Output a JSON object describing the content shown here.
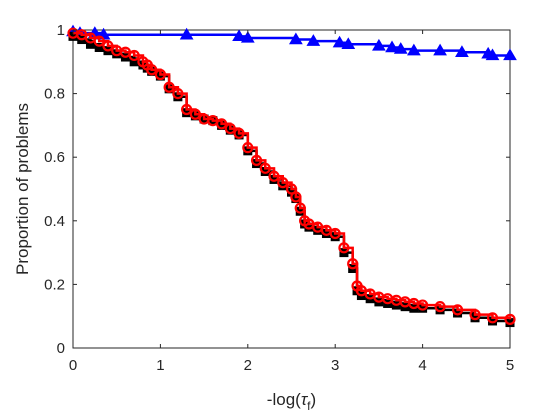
{
  "chart_data": {
    "type": "line",
    "title": "",
    "xlabel": "-log(τ_f)",
    "xlabel_main": "-log(",
    "xlabel_symbol": "τ",
    "xlabel_sub": "f",
    "xlabel_close": ")",
    "ylabel": "Proportion of problems",
    "xlim": [
      0,
      5
    ],
    "ylim": [
      0,
      1
    ],
    "xticks": [
      0,
      1,
      2,
      3,
      4,
      5
    ],
    "yticks": [
      0,
      0.2,
      0.4,
      0.6,
      0.8,
      1
    ],
    "xtick_labels": [
      "0",
      "1",
      "2",
      "3",
      "4",
      "5"
    ],
    "ytick_labels": [
      "0",
      "0.2",
      "0.4",
      "0.6",
      "0.8",
      "1"
    ],
    "grid": false,
    "series": [
      {
        "color": "#0000ff",
        "marker": "triangle-up",
        "x": [
          0,
          0.08,
          0.25,
          0.35,
          1.3,
          1.9,
          2.0,
          2.55,
          2.75,
          3.05,
          3.15,
          3.5,
          3.65,
          3.75,
          3.9,
          4.2,
          4.45,
          4.75,
          4.8,
          5.0
        ],
        "y": [
          0.995,
          0.99,
          0.99,
          0.985,
          0.985,
          0.98,
          0.975,
          0.97,
          0.965,
          0.96,
          0.955,
          0.95,
          0.945,
          0.94,
          0.935,
          0.935,
          0.93,
          0.925,
          0.92,
          0.92
        ]
      },
      {
        "color": "#000000",
        "marker": "square",
        "x": [
          0,
          0.1,
          0.2,
          0.3,
          0.4,
          0.5,
          0.6,
          0.7,
          0.8,
          0.85,
          0.9,
          1.0,
          1.1,
          1.2,
          1.3,
          1.4,
          1.5,
          1.6,
          1.7,
          1.8,
          1.9,
          2.0,
          2.1,
          2.2,
          2.3,
          2.4,
          2.5,
          2.55,
          2.6,
          2.65,
          2.7,
          2.8,
          2.9,
          3.0,
          3.1,
          3.2,
          3.25,
          3.3,
          3.4,
          3.5,
          3.6,
          3.7,
          3.8,
          3.9,
          4.0,
          4.2,
          4.4,
          4.6,
          4.8,
          5.0
        ],
        "y": [
          0.98,
          0.97,
          0.955,
          0.945,
          0.935,
          0.925,
          0.915,
          0.9,
          0.89,
          0.88,
          0.87,
          0.855,
          0.815,
          0.79,
          0.74,
          0.73,
          0.72,
          0.715,
          0.7,
          0.685,
          0.67,
          0.62,
          0.58,
          0.555,
          0.53,
          0.51,
          0.49,
          0.47,
          0.43,
          0.39,
          0.38,
          0.37,
          0.36,
          0.35,
          0.3,
          0.25,
          0.18,
          0.165,
          0.155,
          0.145,
          0.14,
          0.135,
          0.13,
          0.125,
          0.125,
          0.12,
          0.11,
          0.095,
          0.085,
          0.08
        ]
      },
      {
        "color": "#ff0000",
        "marker": "circle",
        "x": [
          0,
          0.1,
          0.2,
          0.3,
          0.4,
          0.5,
          0.6,
          0.7,
          0.8,
          0.85,
          0.9,
          1.0,
          1.1,
          1.2,
          1.3,
          1.4,
          1.5,
          1.6,
          1.7,
          1.8,
          1.9,
          2.0,
          2.1,
          2.2,
          2.3,
          2.4,
          2.5,
          2.55,
          2.6,
          2.65,
          2.7,
          2.8,
          2.9,
          3.0,
          3.1,
          3.2,
          3.25,
          3.3,
          3.4,
          3.5,
          3.6,
          3.7,
          3.8,
          3.9,
          4.0,
          4.2,
          4.4,
          4.6,
          4.8,
          5.0
        ],
        "y": [
          0.99,
          0.985,
          0.975,
          0.965,
          0.95,
          0.935,
          0.93,
          0.92,
          0.9,
          0.89,
          0.875,
          0.86,
          0.82,
          0.8,
          0.75,
          0.735,
          0.72,
          0.715,
          0.705,
          0.69,
          0.675,
          0.63,
          0.59,
          0.565,
          0.54,
          0.52,
          0.5,
          0.475,
          0.44,
          0.4,
          0.39,
          0.38,
          0.37,
          0.36,
          0.315,
          0.265,
          0.195,
          0.18,
          0.17,
          0.16,
          0.155,
          0.15,
          0.145,
          0.14,
          0.135,
          0.13,
          0.12,
          0.105,
          0.095,
          0.09
        ]
      }
    ]
  }
}
